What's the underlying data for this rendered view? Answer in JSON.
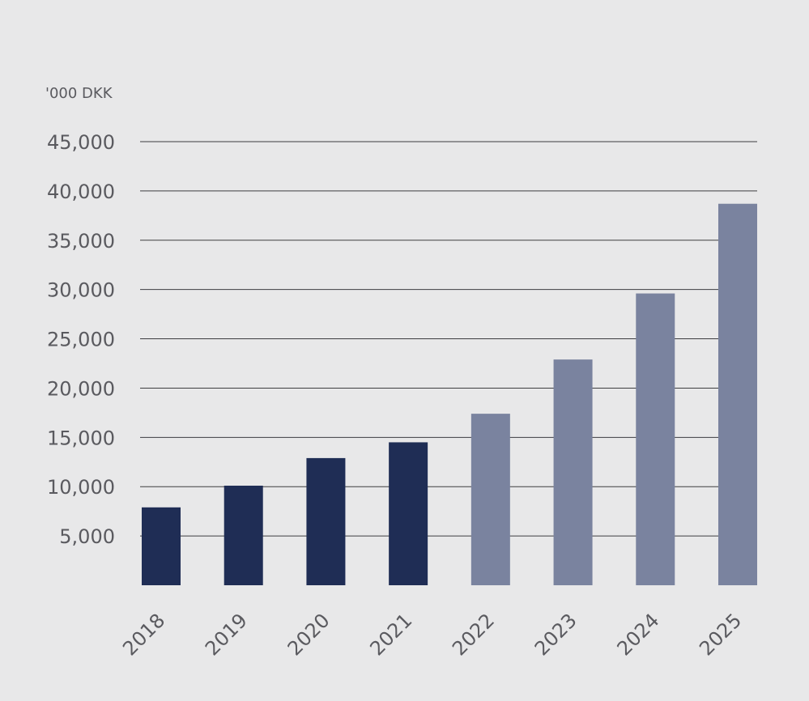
{
  "chart_data": {
    "type": "bar",
    "ylabel": "'000 DKK",
    "ylim": [
      0,
      45000
    ],
    "yticks": [
      5000,
      10000,
      15000,
      20000,
      25000,
      30000,
      35000,
      40000,
      45000
    ],
    "ytick_labels": [
      "5,000",
      "10,000",
      "15,000",
      "20,000",
      "25,000",
      "30,000",
      "35,000",
      "40,000",
      "45,000"
    ],
    "categories": [
      "2018",
      "2019",
      "2020",
      "2021",
      "2022",
      "2023",
      "2024",
      "2025"
    ],
    "values": [
      7900,
      10100,
      12900,
      14500,
      17400,
      22900,
      29600,
      38700
    ],
    "bar_colors": [
      "#1f2d55",
      "#1f2d55",
      "#1f2d55",
      "#1f2d55",
      "#7a839f",
      "#7a839f",
      "#7a839f",
      "#7a839f"
    ],
    "grid": true
  },
  "colors": {
    "background": "#e8e8e9",
    "actual": "#1f2d55",
    "forecast": "#7a839f",
    "gridline": "#3d3d40",
    "text": "#5a5a5f"
  }
}
